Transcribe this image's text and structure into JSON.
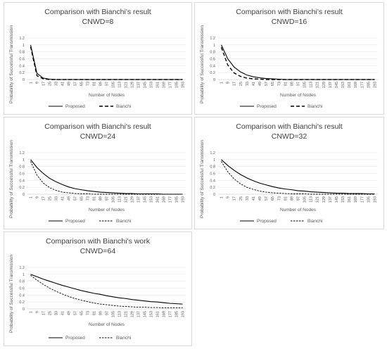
{
  "chart_data": [
    {
      "type": "line",
      "title": "Comparison with Bianchi's result",
      "subtitle": "CNWD=8",
      "xlabel": "Number of Nodes",
      "ylabel": "Probability of Successful Transmission",
      "ylim": [
        0,
        1.2
      ],
      "yticks": [
        "0",
        "0.2",
        "0.4",
        "0.6",
        "0.8",
        "1",
        "1.2"
      ],
      "categories": [
        "1",
        "9",
        "17",
        "25",
        "33",
        "41",
        "49",
        "57",
        "65",
        "73",
        "81",
        "89",
        "97",
        "105",
        "113",
        "121",
        "129",
        "137",
        "145",
        "153",
        "161",
        "169",
        "177",
        "185",
        "193"
      ],
      "series": [
        {
          "name": "Proposed",
          "style": "solid",
          "values": [
            1.0,
            0.18,
            0.04,
            0.01,
            0.0,
            0.0,
            0.0,
            0.0,
            0.0,
            0.0,
            0.0,
            0.0,
            0.0,
            0.0,
            0.0,
            0.0,
            0.0,
            0.0,
            0.0,
            0.0,
            0.0,
            0.0,
            0.0,
            0.0,
            0.0
          ]
        },
        {
          "name": "Bianchi",
          "style": "dash-long",
          "values": [
            0.95,
            0.11,
            0.02,
            0.0,
            0.0,
            0.0,
            0.0,
            0.0,
            0.0,
            0.0,
            0.0,
            0.0,
            0.0,
            0.0,
            0.0,
            0.0,
            0.0,
            0.0,
            0.0,
            0.0,
            0.0,
            0.0,
            0.0,
            0.0,
            0.0
          ]
        }
      ],
      "legend": "bottom"
    },
    {
      "type": "line",
      "title": "Comparison with Bianchi's result",
      "subtitle": "CNWD=16",
      "xlabel": "Number of Nodes",
      "ylabel": "Probability of Successful Transmission",
      "ylim": [
        0,
        1.2
      ],
      "yticks": [
        "0",
        "0.2",
        "0.4",
        "0.6",
        "0.8",
        "1",
        "1.2"
      ],
      "categories": [
        "1",
        "9",
        "17",
        "25",
        "33",
        "41",
        "49",
        "57",
        "65",
        "73",
        "81",
        "89",
        "97",
        "105",
        "113",
        "121",
        "129",
        "137",
        "145",
        "153",
        "161",
        "169",
        "177",
        "185",
        "193"
      ],
      "series": [
        {
          "name": "Proposed",
          "style": "solid",
          "values": [
            1.0,
            0.6,
            0.36,
            0.22,
            0.13,
            0.08,
            0.05,
            0.03,
            0.02,
            0.01,
            0.0,
            0.0,
            0.0,
            0.0,
            0.0,
            0.0,
            0.0,
            0.0,
            0.0,
            0.0,
            0.0,
            0.0,
            0.0,
            0.0,
            0.0
          ]
        },
        {
          "name": "Bianchi",
          "style": "dash-long",
          "values": [
            0.93,
            0.42,
            0.19,
            0.09,
            0.04,
            0.02,
            0.01,
            0.0,
            0.0,
            0.0,
            0.0,
            0.0,
            0.0,
            0.0,
            0.0,
            0.0,
            0.0,
            0.0,
            0.0,
            0.0,
            0.0,
            0.0,
            0.0,
            0.0,
            0.0
          ]
        }
      ],
      "legend": "bottom"
    },
    {
      "type": "line",
      "title": "Comparison with Bianchi's result",
      "subtitle": "CNWD=24",
      "xlabel": "Number of Nodes",
      "ylabel": "Probability of Successful Transmission",
      "ylim": [
        0,
        1.2
      ],
      "yticks": [
        "0",
        "0.2",
        "0.4",
        "0.6",
        "0.8",
        "1",
        "1.2"
      ],
      "categories": [
        "1",
        "9",
        "17",
        "25",
        "33",
        "41",
        "49",
        "57",
        "65",
        "73",
        "81",
        "89",
        "97",
        "105",
        "113",
        "121",
        "129",
        "137",
        "145",
        "153",
        "161",
        "169",
        "177",
        "185",
        "193"
      ],
      "series": [
        {
          "name": "Proposed",
          "style": "solid",
          "values": [
            1.0,
            0.77,
            0.6,
            0.46,
            0.36,
            0.28,
            0.21,
            0.16,
            0.13,
            0.1,
            0.08,
            0.06,
            0.05,
            0.04,
            0.03,
            0.02,
            0.02,
            0.01,
            0.01,
            0.01,
            0.01,
            0.0,
            0.0,
            0.0,
            0.0
          ]
        },
        {
          "name": "Bianchi",
          "style": "dash",
          "values": [
            0.95,
            0.55,
            0.32,
            0.19,
            0.11,
            0.06,
            0.04,
            0.02,
            0.01,
            0.01,
            0.0,
            0.0,
            0.0,
            0.0,
            0.0,
            0.0,
            0.0,
            0.0,
            0.0,
            0.0,
            0.0,
            0.0,
            0.0,
            0.0,
            0.0
          ]
        }
      ],
      "legend": "bottom"
    },
    {
      "type": "line",
      "title": "Comparison with Bianchi's result",
      "subtitle": "CNWD=32",
      "xlabel": "Number of Nodes",
      "ylabel": "Probability of Successful Transmission",
      "ylim": [
        0,
        1.2
      ],
      "yticks": [
        "0",
        "0.2",
        "0.4",
        "0.6",
        "0.8",
        "1",
        "1.2"
      ],
      "categories": [
        "1",
        "9",
        "17",
        "25",
        "33",
        "41",
        "49",
        "57",
        "65",
        "73",
        "81",
        "89",
        "97",
        "105",
        "113",
        "121",
        "129",
        "137",
        "145",
        "153",
        "161",
        "169",
        "177",
        "185",
        "193"
      ],
      "series": [
        {
          "name": "Proposed",
          "style": "solid",
          "values": [
            1.0,
            0.83,
            0.69,
            0.57,
            0.47,
            0.39,
            0.32,
            0.27,
            0.22,
            0.18,
            0.15,
            0.13,
            0.1,
            0.09,
            0.07,
            0.06,
            0.05,
            0.04,
            0.03,
            0.03,
            0.02,
            0.02,
            0.02,
            0.01,
            0.01
          ]
        },
        {
          "name": "Bianchi",
          "style": "dash",
          "values": [
            0.95,
            0.65,
            0.44,
            0.3,
            0.2,
            0.14,
            0.09,
            0.06,
            0.04,
            0.03,
            0.02,
            0.01,
            0.01,
            0.01,
            0.0,
            0.0,
            0.0,
            0.0,
            0.0,
            0.0,
            0.0,
            0.0,
            0.0,
            0.0,
            0.0
          ]
        }
      ],
      "legend": "bottom"
    },
    {
      "type": "line",
      "title": "Comparison with Bianchi's work",
      "subtitle": "CNWD=64",
      "xlabel": "Number of Nodes",
      "ylabel": "Probability of Successful Transmission",
      "ylim": [
        0,
        1.2
      ],
      "yticks": [
        "0",
        "0.2",
        "0.4",
        "0.6",
        "0.8",
        "1",
        "1.2"
      ],
      "categories": [
        "1",
        "9",
        "17",
        "25",
        "33",
        "41",
        "49",
        "57",
        "65",
        "73",
        "81",
        "89",
        "97",
        "105",
        "113",
        "121",
        "129",
        "137",
        "145",
        "153",
        "161",
        "169",
        "177",
        "185",
        "193"
      ],
      "series": [
        {
          "name": "Proposed",
          "style": "solid",
          "values": [
            1.0,
            0.93,
            0.86,
            0.8,
            0.74,
            0.68,
            0.63,
            0.58,
            0.53,
            0.49,
            0.45,
            0.42,
            0.38,
            0.35,
            0.32,
            0.3,
            0.27,
            0.25,
            0.23,
            0.21,
            0.2,
            0.18,
            0.16,
            0.15,
            0.14
          ]
        },
        {
          "name": "Bianchi",
          "style": "dash",
          "values": [
            0.97,
            0.83,
            0.71,
            0.6,
            0.51,
            0.43,
            0.36,
            0.3,
            0.25,
            0.21,
            0.17,
            0.14,
            0.12,
            0.1,
            0.08,
            0.07,
            0.06,
            0.05,
            0.05,
            0.04,
            0.04,
            0.03,
            0.03,
            0.03,
            0.03
          ]
        }
      ],
      "legend": "bottom"
    }
  ]
}
